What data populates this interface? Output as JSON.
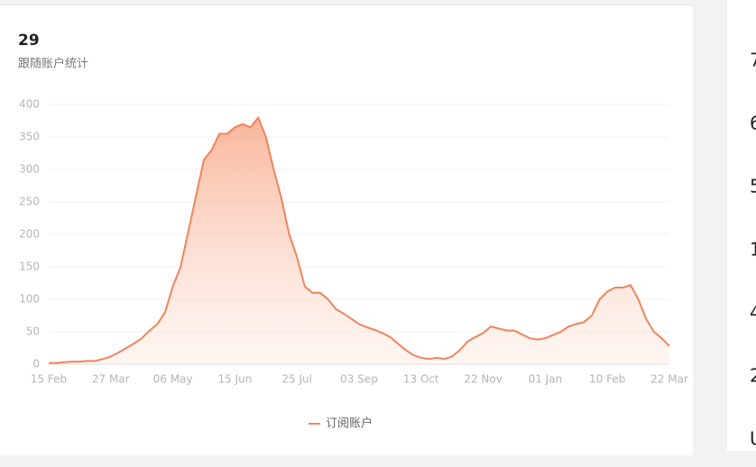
{
  "header": {
    "count": "29",
    "subtitle": "跟随账户统计"
  },
  "side_values": [
    "7",
    "6",
    "5",
    "1",
    "4",
    "2",
    "U"
  ],
  "chart_data": {
    "type": "line",
    "categories": [
      "15 Feb",
      null,
      null,
      null,
      null,
      null,
      null,
      null,
      "27 Mar",
      null,
      null,
      null,
      null,
      null,
      null,
      null,
      "06 May",
      null,
      null,
      null,
      null,
      null,
      null,
      null,
      "15 Jun",
      null,
      null,
      null,
      null,
      null,
      null,
      null,
      "25 Jul",
      null,
      null,
      null,
      null,
      null,
      null,
      null,
      "03 Sep",
      null,
      null,
      null,
      null,
      null,
      null,
      null,
      "13 Oct",
      null,
      null,
      null,
      null,
      null,
      null,
      null,
      "22 Nov",
      null,
      null,
      null,
      null,
      null,
      null,
      null,
      "01 Jan",
      null,
      null,
      null,
      null,
      null,
      null,
      null,
      "10 Feb",
      null,
      null,
      null,
      null,
      null,
      null,
      null,
      "22 Mar"
    ],
    "series": [
      {
        "name": "订阅账户",
        "color": "#f0845c",
        "values": [
          2,
          2,
          3,
          4,
          4,
          5,
          5,
          8,
          12,
          18,
          25,
          32,
          40,
          52,
          62,
          80,
          120,
          150,
          205,
          260,
          315,
          330,
          355,
          355,
          365,
          370,
          365,
          380,
          350,
          300,
          255,
          200,
          165,
          120,
          110,
          110,
          100,
          85,
          78,
          70,
          62,
          57,
          53,
          48,
          42,
          32,
          22,
          14,
          10,
          8,
          10,
          8,
          12,
          22,
          35,
          42,
          48,
          58,
          55,
          52,
          52,
          46,
          40,
          38,
          40,
          45,
          50,
          58,
          62,
          65,
          75,
          100,
          112,
          118,
          118,
          122,
          100,
          70,
          50,
          40,
          28
        ]
      }
    ],
    "ylim": [
      0,
      400
    ],
    "yticks": [
      0,
      50,
      100,
      150,
      200,
      250,
      300,
      350,
      400
    ],
    "grid": true,
    "area": true
  }
}
